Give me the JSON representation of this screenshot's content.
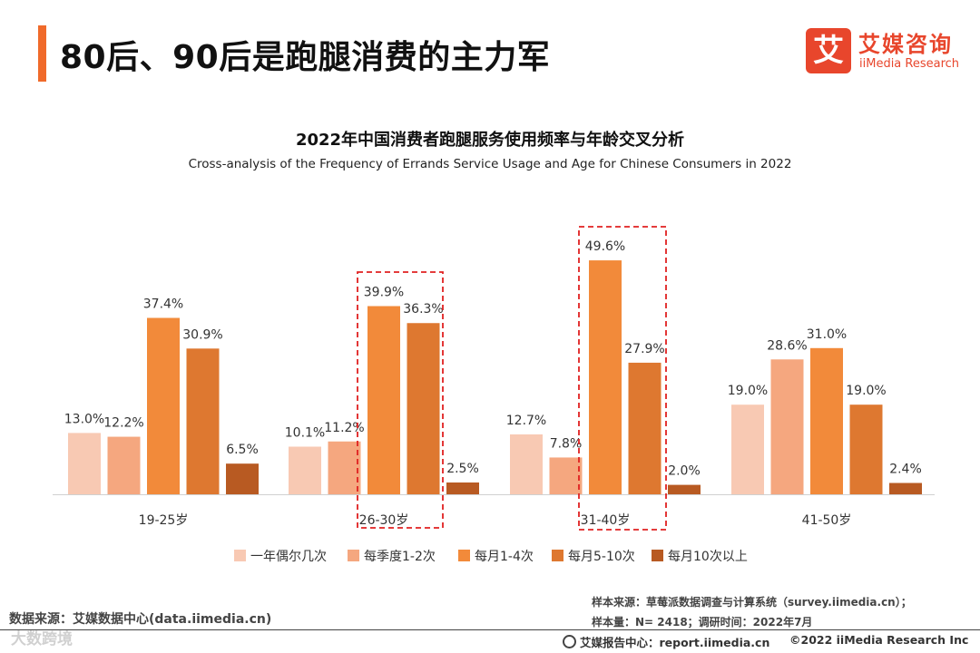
{
  "page": {
    "title": "80后、90后是跑腿消费的主力军"
  },
  "logo": {
    "mark": "艾",
    "cn": "艾媒咨询",
    "en": "iiMedia Research"
  },
  "footer": {
    "source_left": "数据来源：艾媒数据中心(data.iimedia.cn)",
    "sample_source": "样本来源：草莓派数据调查与计算系统（survey.iimedia.cn）；",
    "sample_size": "样本量：N= 2418；调研时间：2022年7月",
    "report_center": "艾媒报告中心：report.iimedia.cn",
    "copyright": "©2022  iiMedia Research  Inc",
    "watermark": "大数跨境"
  },
  "colors": {
    "accent": "#f06a2a",
    "brand": "#e8462c",
    "highlight_box": "#e02020"
  },
  "chart_data": {
    "type": "bar",
    "title": "2022年中国消费者跑腿服务使用频率与年龄交叉分析",
    "subtitle": "Cross-analysis of the Frequency of Errands Service Usage and Age for Chinese Consumers in 2022",
    "categories": [
      "19-25岁",
      "26-30岁",
      "31-40岁",
      "41-50岁"
    ],
    "series": [
      {
        "name": "一年偶尔几次",
        "color": "#f8c9b3",
        "values": [
          13.0,
          10.1,
          12.7,
          19.0
        ],
        "labels": [
          "13.0%",
          "10.1%",
          "12.7%",
          "19.0%"
        ]
      },
      {
        "name": "每季度1-2次",
        "color": "#f5a77f",
        "values": [
          12.2,
          11.2,
          7.8,
          28.6
        ],
        "labels": [
          "12.2%",
          "11.2%",
          "7.8%",
          "28.6%"
        ]
      },
      {
        "name": "每月1-4次",
        "color": "#f28a3a",
        "values": [
          37.4,
          39.9,
          49.6,
          31.0
        ],
        "labels": [
          "37.4%",
          "39.9%",
          "49.6%",
          "31.0%"
        ]
      },
      {
        "name": "每月5-10次",
        "color": "#de7830",
        "values": [
          30.9,
          36.3,
          27.9,
          19.0
        ],
        "labels": [
          "30.9%",
          "36.3%",
          "27.9%",
          "19.0%"
        ]
      },
      {
        "name": "每月10次以上",
        "color": "#b85a22",
        "values": [
          6.5,
          2.5,
          2.0,
          2.4
        ],
        "labels": [
          "6.5%",
          "2.5%",
          "2.0%",
          "2.4%"
        ]
      }
    ],
    "highlighted_categories": [
      "26-30岁",
      "31-40岁"
    ],
    "ylim": [
      0,
      55
    ],
    "legend_position": "bottom",
    "grid": false
  }
}
